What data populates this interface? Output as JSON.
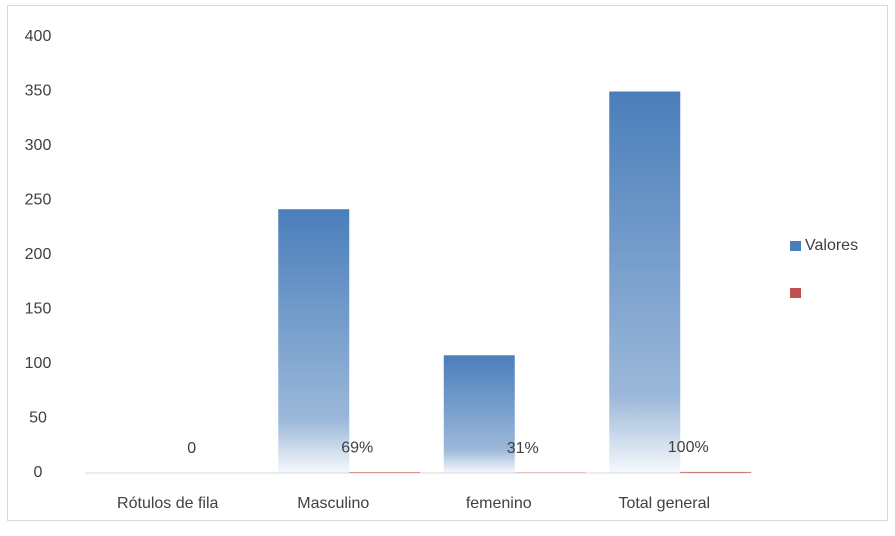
{
  "chart_data": {
    "type": "bar",
    "categories": [
      "Rótulos de fila",
      "Masculino",
      "femenino",
      "Total general"
    ],
    "series": [
      {
        "name": "Valores",
        "color": "#4a7ebb",
        "values": [
          0,
          242,
          108,
          350
        ]
      },
      {
        "color": "#c0504d",
        "values": [
          0,
          0.69,
          0.31,
          1
        ],
        "value_labels": [
          "0",
          "69%",
          "31%",
          "100%"
        ]
      }
    ],
    "ylim": [
      0,
      400
    ],
    "yticks": [
      0,
      50,
      100,
      150,
      200,
      250,
      300,
      350,
      400
    ],
    "grid": false,
    "legend": "right"
  }
}
